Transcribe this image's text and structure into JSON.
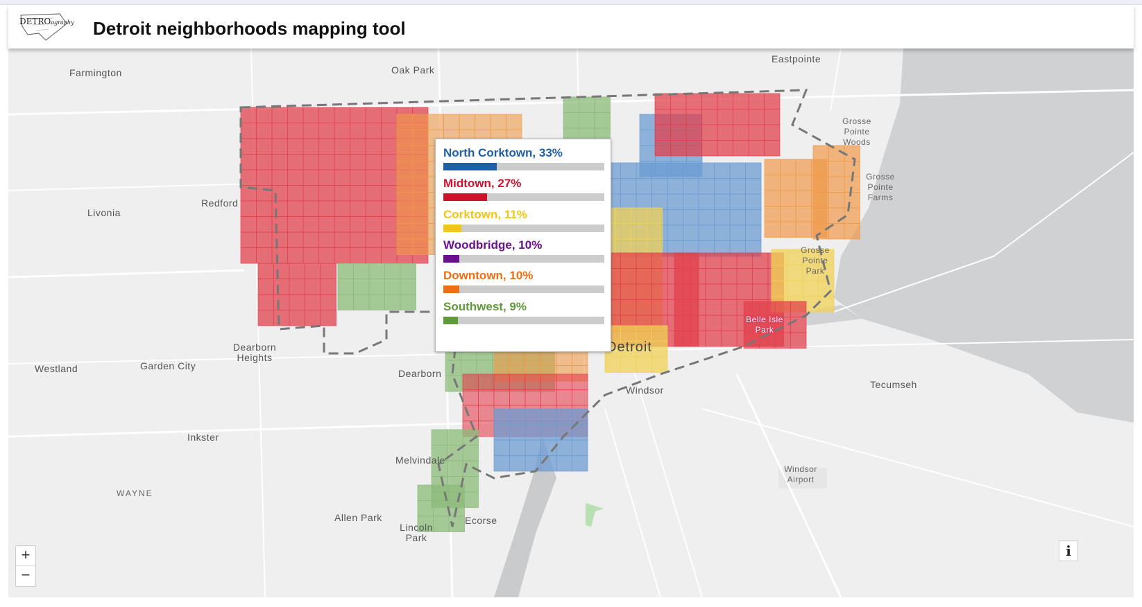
{
  "header": {
    "logo_text": "DETRO",
    "logo_tag": "ography",
    "title": "Detroit neighborhoods mapping tool"
  },
  "map": {
    "labels": {
      "farmington": "Farmington",
      "oak_park": "Oak Park",
      "eastpointe": "Eastpointe",
      "grosse_pointe_woods": "Grosse Pointe Woods",
      "grosse_pointe_farms": "Grosse Pointe Farms",
      "grosse_pointe_park": "Grosse Pointe Park",
      "redford": "Redford",
      "livonia": "Livonia",
      "westland": "Westland",
      "garden_city": "Garden City",
      "dearborn_heights": "Dearborn Heights",
      "dearborn": "Dearborn",
      "detroit": "Detroit",
      "windsor": "Windsor",
      "tecumseh": "Tecumseh",
      "belle_isle_park": "Belle Isle Park",
      "inkster": "Inkster",
      "melvindale": "Melvindale",
      "wayne": "WAYNE",
      "allen_park": "Allen Park",
      "lincoln_park": "Lincoln Park",
      "ecorse": "Ecorse",
      "windsor_airport": "Windsor Airport"
    }
  },
  "popup": {
    "entries": [
      {
        "label": "North Corktown, 33%",
        "value": 33,
        "color": "#1f5fa8"
      },
      {
        "label": "Midtown, 27%",
        "value": 27,
        "color": "#d0112b"
      },
      {
        "label": "Corktown, 11%",
        "value": 11,
        "color": "#f2c618"
      },
      {
        "label": "Woodbridge, 10%",
        "value": 10,
        "color": "#6a0f8e"
      },
      {
        "label": "Downtown, 10%",
        "value": 10,
        "color": "#ee6f12"
      },
      {
        "label": "Southwest, 9%",
        "value": 9,
        "color": "#5e9a3a"
      }
    ]
  },
  "controls": {
    "zoom_in": "+",
    "zoom_out": "−",
    "info": "i"
  }
}
